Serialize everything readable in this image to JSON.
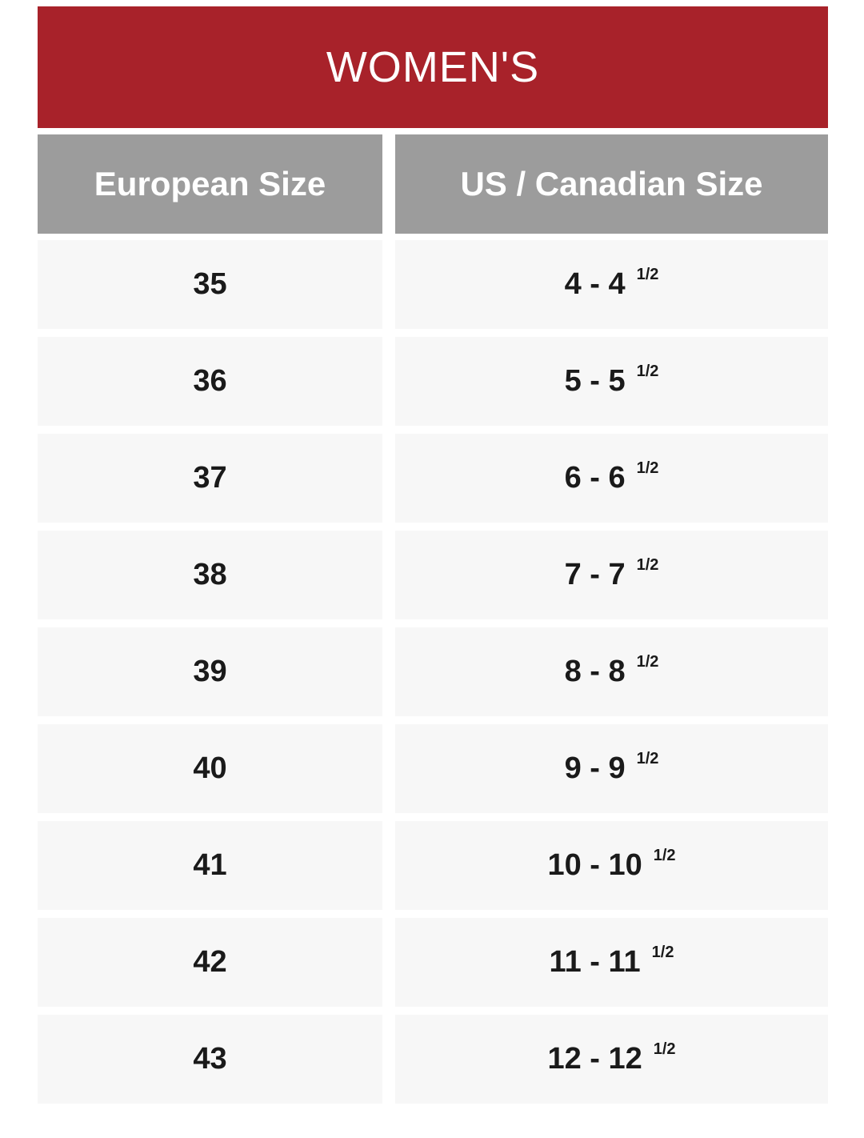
{
  "title": "WOMEN'S",
  "colors": {
    "title_bg": "#a8222a",
    "header_bg": "#9c9c9c",
    "cell_bg": "#f7f7f7"
  },
  "headers": [
    "European Size",
    "US / Canadian Size"
  ],
  "rows": [
    {
      "eu": "35",
      "us": "4 - 4",
      "frac": "1/2"
    },
    {
      "eu": "36",
      "us": "5 - 5",
      "frac": "1/2"
    },
    {
      "eu": "37",
      "us": "6 - 6",
      "frac": "1/2"
    },
    {
      "eu": "38",
      "us": "7 - 7",
      "frac": "1/2"
    },
    {
      "eu": "39",
      "us": "8 - 8",
      "frac": "1/2"
    },
    {
      "eu": "40",
      "us": "9 - 9",
      "frac": "1/2"
    },
    {
      "eu": "41",
      "us": "10 - 10",
      "frac": "1/2"
    },
    {
      "eu": "42",
      "us": "11 - 11",
      "frac": "1/2"
    },
    {
      "eu": "43",
      "us": "12 - 12",
      "frac": "1/2"
    }
  ]
}
